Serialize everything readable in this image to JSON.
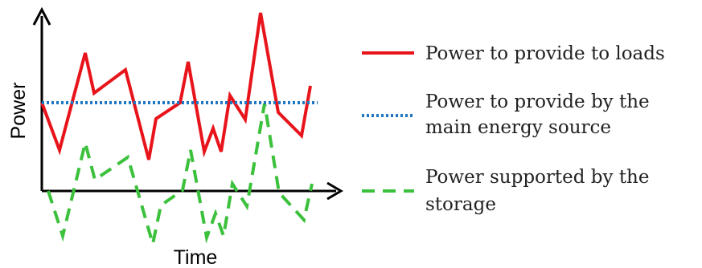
{
  "chart_data": {
    "type": "line",
    "xlabel": "Time",
    "ylabel": "Power",
    "grid": false,
    "legend_position": "right",
    "axis_ticks": false,
    "series": [
      {
        "name": "Power to provide to loads",
        "color": "#e8141b",
        "style": "solid",
        "points": [
          [
            52,
            128
          ],
          [
            74,
            187
          ],
          [
            106,
            66
          ],
          [
            117,
            116
          ],
          [
            156,
            87
          ],
          [
            185,
            199
          ],
          [
            194,
            148
          ],
          [
            224,
            128
          ],
          [
            234,
            77
          ],
          [
            254,
            189
          ],
          [
            265,
            160
          ],
          [
            275,
            189
          ],
          [
            286,
            119
          ],
          [
            305,
            149
          ],
          [
            324,
            16
          ],
          [
            346,
            140
          ],
          [
            375,
            169
          ],
          [
            386,
            107
          ]
        ]
      },
      {
        "name": "Power to provide by the main energy source",
        "color": "#1f77c4",
        "style": "dotted",
        "points": [
          [
            52,
            128
          ],
          [
            395,
            128
          ]
        ]
      },
      {
        "name": "Power supported by the storage",
        "color": "#3cc13c",
        "style": "dashed",
        "points": [
          [
            60,
            238
          ],
          [
            78,
            294
          ],
          [
            106,
            178
          ],
          [
            118,
            224
          ],
          [
            159,
            196
          ],
          [
            190,
            304
          ],
          [
            200,
            256
          ],
          [
            227,
            237
          ],
          [
            237,
            187
          ],
          [
            257,
            296
          ],
          [
            268,
            266
          ],
          [
            278,
            294
          ],
          [
            289,
            229
          ],
          [
            307,
            257
          ],
          [
            329,
            129
          ],
          [
            347,
            240
          ],
          [
            378,
            274
          ],
          [
            388,
            229
          ]
        ]
      }
    ]
  },
  "legend": {
    "items": [
      {
        "key": "loads",
        "lines": [
          "Power to provide to loads"
        ]
      },
      {
        "key": "source",
        "lines": [
          "Power to provide by the",
          "main energy source"
        ]
      },
      {
        "key": "storage",
        "lines": [
          "Power supported by the",
          "storage"
        ]
      }
    ]
  }
}
